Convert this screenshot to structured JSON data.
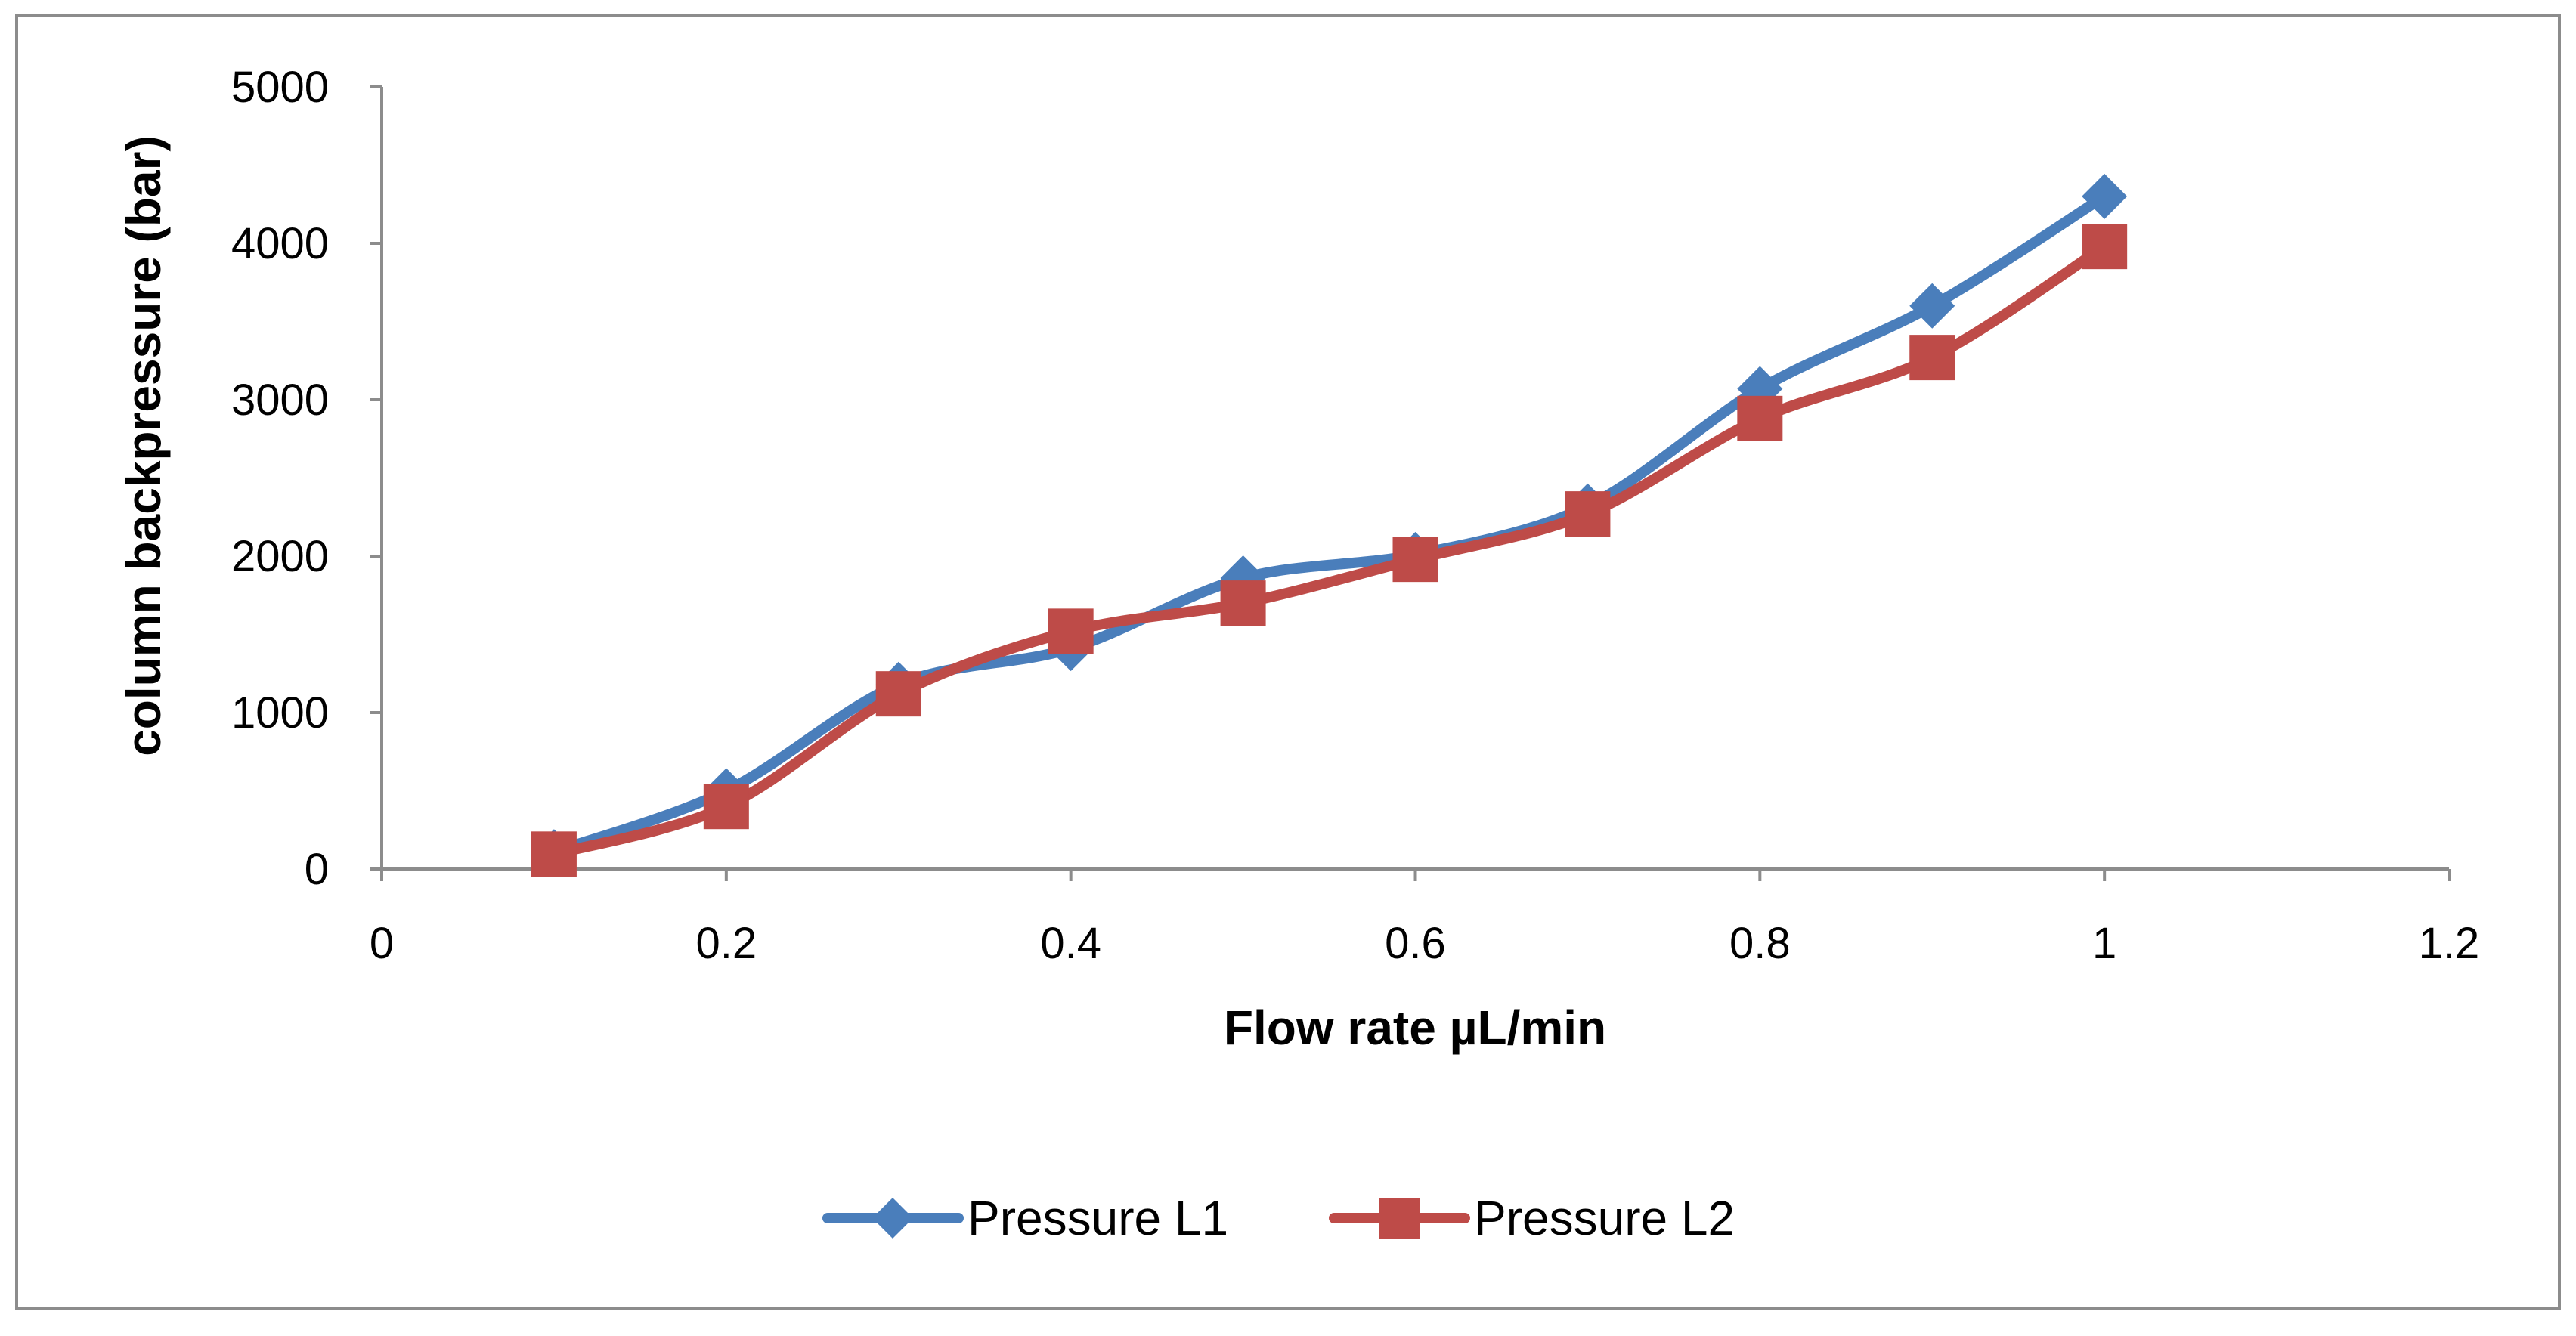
{
  "chart_data": {
    "type": "line",
    "title": "",
    "xlabel": "Flow rate µL/min",
    "ylabel": "column backpressure (bar)",
    "xlim": [
      0,
      1.2
    ],
    "ylim": [
      0,
      5000
    ],
    "xticks": [
      0,
      0.2,
      0.4,
      0.6,
      0.8,
      1,
      1.2
    ],
    "yticks": [
      0,
      1000,
      2000,
      3000,
      4000,
      5000
    ],
    "xtick_labels": [
      "0",
      "0.2",
      "0.4",
      "0.6",
      "0.8",
      "1",
      "1.2"
    ],
    "ytick_labels": [
      "0",
      "1000",
      "2000",
      "3000",
      "4000",
      "5000"
    ],
    "grid": false,
    "legend": "bottom-center",
    "x": [
      0.1,
      0.2,
      0.3,
      0.4,
      0.5,
      0.6,
      0.7,
      0.8,
      0.9,
      1.0
    ],
    "series": [
      {
        "name": "Pressure L1",
        "color": "#4a7ebb",
        "marker": "diamond",
        "values": [
          110,
          500,
          1180,
          1410,
          1860,
          2010,
          2320,
          3070,
          3600,
          4300
        ]
      },
      {
        "name": "Pressure L2",
        "color": "#be4b48",
        "marker": "square",
        "values": [
          95,
          400,
          1120,
          1520,
          1700,
          1980,
          2270,
          2880,
          3270,
          3980
        ]
      }
    ]
  }
}
